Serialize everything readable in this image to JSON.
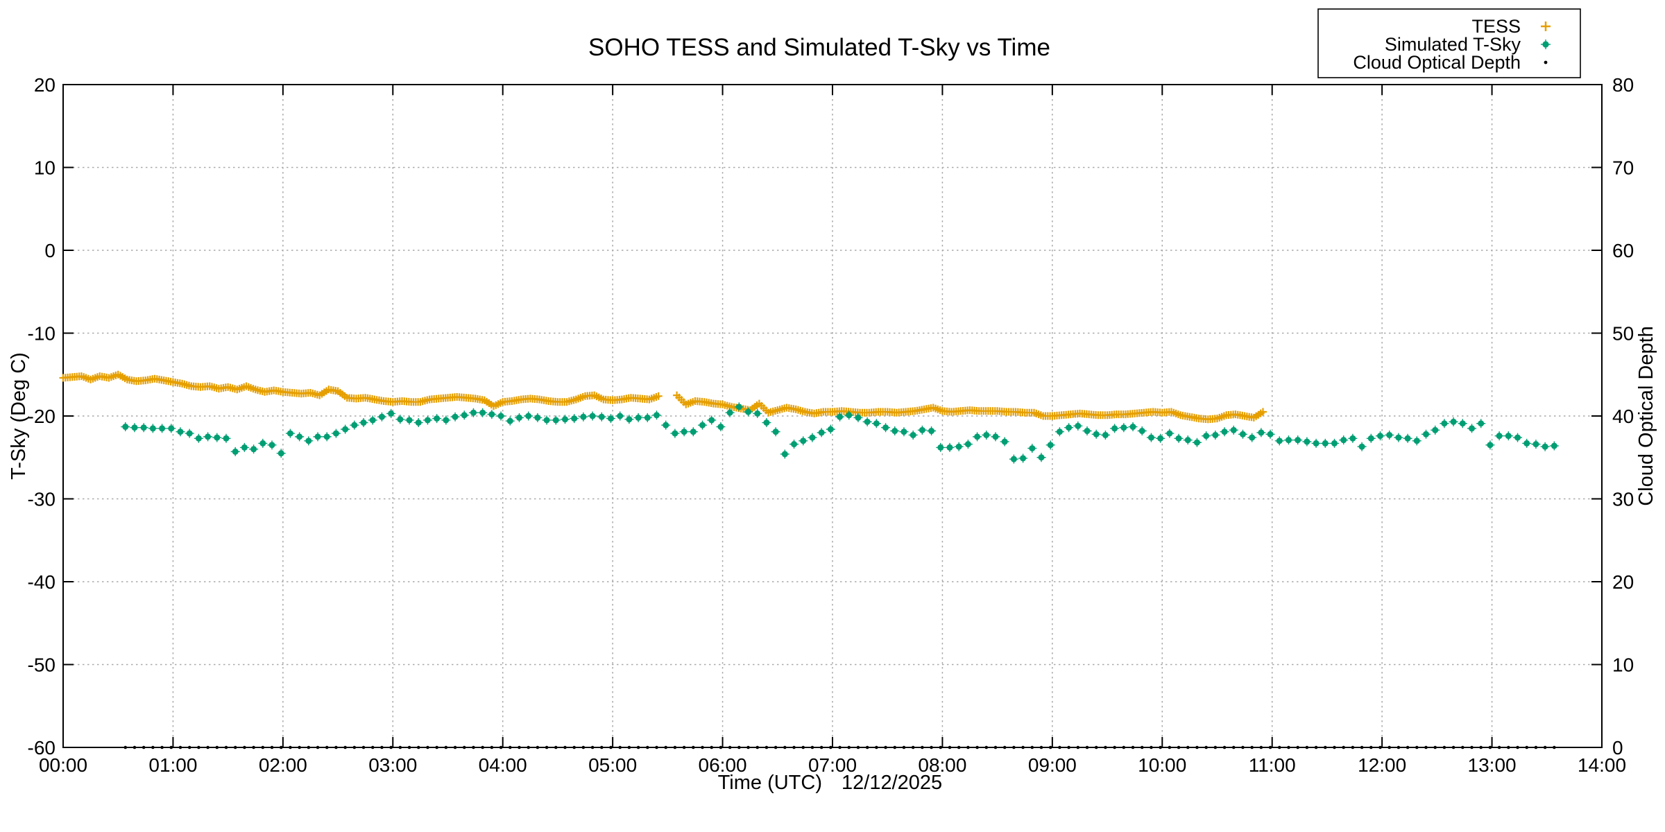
{
  "chart_data": {
    "type": "scatter",
    "title": "SOHO TESS and Simulated T-Sky vs Time",
    "x_axis": {
      "label": "Time (UTC)",
      "date": "12/12/2025",
      "label_color": "#009E73",
      "range_hours": [
        0,
        14
      ],
      "tick_labels": [
        "00:00",
        "01:00",
        "02:00",
        "03:00",
        "04:00",
        "05:00",
        "06:00",
        "07:00",
        "08:00",
        "09:00",
        "10:00",
        "11:00",
        "12:00",
        "13:00",
        "14:00"
      ]
    },
    "y_left_axis": {
      "label": "T-Sky (Deg C)",
      "label_color": "#009E73",
      "range": [
        -60,
        20
      ],
      "ticks": [
        20,
        10,
        0,
        -10,
        -20,
        -30,
        -40,
        -50,
        -60
      ]
    },
    "y_right_axis": {
      "label": "Cloud Optical Depth",
      "label_color": "#56B4E9",
      "range": [
        0,
        80
      ],
      "ticks": [
        80,
        70,
        60,
        50,
        40,
        30,
        20,
        10,
        0
      ]
    },
    "grid": true,
    "legend_position": "top-right",
    "series": [
      {
        "name": "TESS",
        "axis": "left",
        "marker": "plus",
        "color": "#E69F00",
        "segments": [
          {
            "x_start": 0.0,
            "x_step": 0.083333,
            "y": [
              -15.4,
              -15.3,
              -15.2,
              -15.6,
              -15.2,
              -15.4,
              -15.0,
              -15.6,
              -15.8,
              -15.7,
              -15.5,
              -15.7,
              -15.9,
              -16.1,
              -16.4,
              -16.5,
              -16.4,
              -16.7,
              -16.5,
              -16.8,
              -16.4,
              -16.8,
              -17.1,
              -16.9,
              -17.1,
              -17.2,
              -17.3,
              -17.2,
              -17.5,
              -16.8,
              -17.0,
              -17.8,
              -17.9,
              -17.8,
              -18.0,
              -18.2,
              -18.3,
              -18.2,
              -18.3,
              -18.3,
              -18.0,
              -17.9,
              -17.8,
              -17.7,
              -17.8,
              -17.9,
              -18.1,
              -18.8,
              -18.3,
              -18.2,
              -18.0,
              -17.9,
              -18.0,
              -18.2,
              -18.3,
              -18.3,
              -18.0,
              -17.6,
              -17.5,
              -18.0,
              -18.1,
              -18.0,
              -17.8,
              -17.9,
              -18.0,
              -17.6
            ]
          },
          {
            "x_start": 5.583333,
            "x_step": 0.083333,
            "y": [
              -17.5,
              -18.6,
              -18.2,
              -18.3,
              -18.5,
              -18.6,
              -18.9,
              -19.1,
              -19.3,
              -18.5,
              -19.6,
              -19.3,
              -19.0,
              -19.2,
              -19.5,
              -19.7,
              -19.5,
              -19.5,
              -19.4,
              -19.5,
              -19.6,
              -19.6,
              -19.5,
              -19.5,
              -19.6,
              -19.5,
              -19.4,
              -19.2,
              -19.0,
              -19.4,
              -19.5,
              -19.4,
              -19.3,
              -19.4,
              -19.4,
              -19.4,
              -19.5,
              -19.5,
              -19.6,
              -19.6,
              -20.0,
              -20.0,
              -19.9,
              -19.8,
              -19.7,
              -19.8,
              -19.9,
              -19.9,
              -19.8,
              -19.8,
              -19.7,
              -19.6,
              -19.5,
              -19.6,
              -19.5,
              -19.9,
              -20.1,
              -20.3,
              -20.4,
              -20.3,
              -19.9,
              -19.8,
              -20.0,
              -20.2,
              -19.5
            ]
          }
        ]
      },
      {
        "name": "Simulated T-Sky",
        "axis": "left",
        "marker": "dot",
        "color": "#009E73",
        "segments": [
          {
            "x_start": 0.566667,
            "x_step": 0.083333,
            "y": [
              -21.3,
              -21.4,
              -21.4,
              -21.5,
              -21.5,
              -21.5,
              -21.9,
              -22.1,
              -22.7,
              -22.5,
              -22.6,
              -22.7,
              -24.3,
              -23.8,
              -24.0,
              -23.3,
              -23.5,
              -24.5,
              -22.1,
              -22.5,
              -23.0,
              -22.5,
              -22.5,
              -22.1,
              -21.6,
              -21.1,
              -20.8,
              -20.5,
              -20.1,
              -19.7,
              -20.4,
              -20.5,
              -20.8,
              -20.5,
              -20.3,
              -20.5,
              -20.1,
              -19.9,
              -19.6,
              -19.6,
              -19.8,
              -20.0,
              -20.6,
              -20.2,
              -20.0,
              -20.2,
              -20.5,
              -20.5,
              -20.4,
              -20.3,
              -20.1,
              -20.0,
              -20.1,
              -20.3,
              -20.0,
              -20.4,
              -20.2,
              -20.2,
              -19.9,
              -21.1,
              -22.1,
              -21.9,
              -21.9,
              -21.1,
              -20.5,
              -21.3,
              -19.6,
              -18.9,
              -19.5,
              -19.7,
              -20.8,
              -21.9,
              -24.6,
              -23.4,
              -23.0,
              -22.6,
              -22.0,
              -21.6,
              -20.1,
              -19.9,
              -20.2,
              -20.7,
              -20.9,
              -21.4,
              -21.8,
              -21.9,
              -22.3,
              -21.7,
              -21.8,
              -23.8,
              -23.8,
              -23.7,
              -23.4,
              -22.5,
              -22.3,
              -22.5,
              -23.1,
              -25.2,
              -25.1,
              -23.9,
              -25.0,
              -23.5,
              -21.9,
              -21.4,
              -21.2,
              -21.8,
              -22.2,
              -22.3,
              -21.5,
              -21.4,
              -21.3,
              -21.8,
              -22.6,
              -22.7,
              -22.1,
              -22.7,
              -22.9,
              -23.2,
              -22.4,
              -22.3,
              -21.9,
              -21.7,
              -22.2,
              -22.6,
              -22.0,
              -22.2,
              -23.0,
              -22.9,
              -22.9,
              -23.1,
              -23.3,
              -23.3,
              -23.3,
              -22.9,
              -22.7,
              -23.7,
              -22.7,
              -22.4,
              -22.3,
              -22.6,
              -22.7,
              -23.0,
              -22.2,
              -21.7,
              -20.9,
              -20.7,
              -20.9,
              -21.5,
              -20.9,
              -23.5,
              -22.4,
              -22.4,
              -22.6,
              -23.3,
              -23.4,
              -23.7,
              -23.6
            ]
          }
        ]
      },
      {
        "name": "Cloud Optical Depth",
        "axis": "right",
        "marker": "small-dot",
        "color": "#000000",
        "segments": [
          {
            "x_start": 0.566667,
            "x_step": 0.083333,
            "count": 157,
            "y_const": 0
          }
        ]
      }
    ]
  }
}
